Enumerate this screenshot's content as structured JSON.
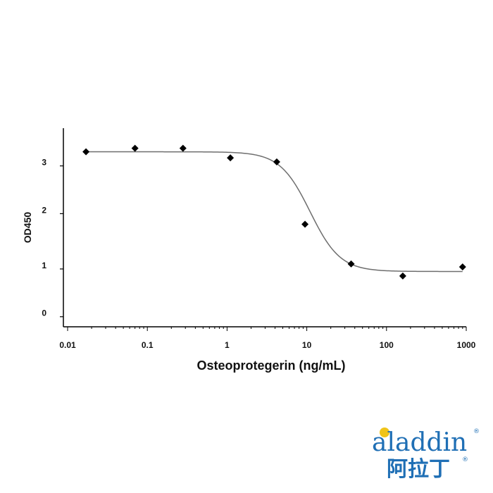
{
  "chart_data": {
    "type": "scatter",
    "xlabel": "Osteoprotegerin (ng/mL)",
    "ylabel": "OD450",
    "x_scale": "log",
    "xlim": [
      0.01,
      1000
    ],
    "ylim": [
      -0.15,
      3.8
    ],
    "x_tick_values": [
      0.01,
      0.1,
      1,
      10,
      100,
      1000
    ],
    "x_tick_labels": [
      "0.01",
      "0.1",
      "1",
      "10",
      "100",
      "1000"
    ],
    "y_tick_values": [
      0.05,
      1.0,
      2.1,
      3.05
    ],
    "y_tick_labels": [
      "0",
      "1",
      "2",
      "3"
    ],
    "grid": false,
    "series": [
      {
        "marker": "diamond",
        "color": "#000000",
        "points": [
          {
            "x": 0.017,
            "y": 3.33
          },
          {
            "x": 0.07,
            "y": 3.4
          },
          {
            "x": 0.28,
            "y": 3.4
          },
          {
            "x": 1.1,
            "y": 3.21
          },
          {
            "x": 4.2,
            "y": 3.13
          },
          {
            "x": 9.5,
            "y": 1.89
          },
          {
            "x": 36,
            "y": 1.1
          },
          {
            "x": 160,
            "y": 0.86
          },
          {
            "x": 900,
            "y": 1.04
          }
        ]
      }
    ],
    "fit_curve": {
      "model": "4PL",
      "top": 3.33,
      "bottom": 0.95,
      "ec50": 11,
      "hill": 2.3,
      "color": "#6e6e6e"
    }
  },
  "logo": {
    "wordmark": "aladdin",
    "chinese": "阿拉丁",
    "color": "#1f6fb5"
  }
}
